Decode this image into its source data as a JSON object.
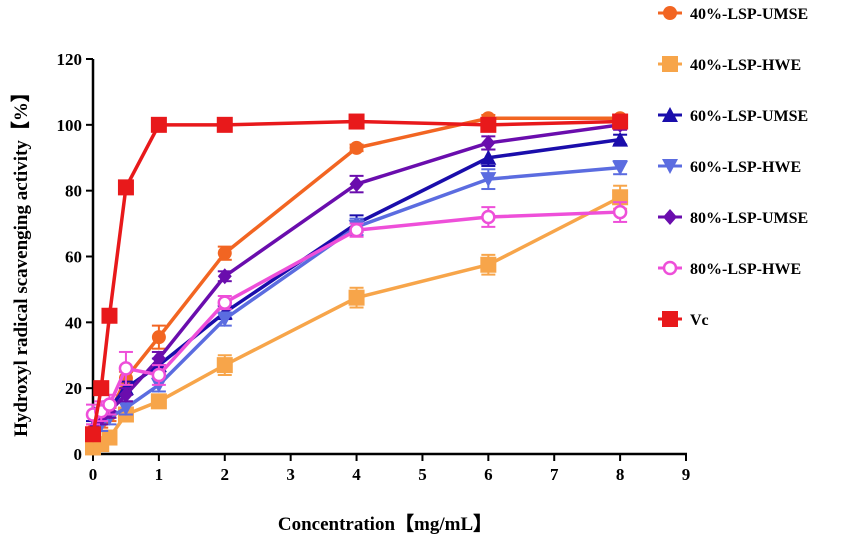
{
  "chart_data": {
    "type": "line",
    "xlabel": "Concentration【mg/mL】",
    "ylabel": "Hydroxyl radical scavenging activity【%】",
    "xlim": [
      0,
      9
    ],
    "ylim": [
      0,
      120
    ],
    "xticks": [
      0,
      1,
      2,
      3,
      4,
      5,
      6,
      7,
      8,
      9
    ],
    "yticks": [
      0,
      20,
      40,
      60,
      80,
      100,
      120
    ],
    "legend_position": "right",
    "series": [
      {
        "name": "40%-LSP-UMSE",
        "color": "#f26522",
        "marker": "circle",
        "x": [
          0,
          0.125,
          0.25,
          0.5,
          1,
          2,
          4,
          6,
          8
        ],
        "y": [
          7,
          10,
          12,
          23,
          35.5,
          61,
          93,
          102,
          102
        ],
        "err": [
          2,
          2,
          2,
          2,
          3.5,
          2,
          1,
          1,
          1
        ]
      },
      {
        "name": "40%-LSP-HWE",
        "color": "#f7a54a",
        "marker": "square",
        "x": [
          0,
          0.125,
          0.25,
          0.5,
          1,
          2,
          4,
          6,
          8
        ],
        "y": [
          2,
          3,
          5,
          12,
          16,
          27,
          47.5,
          57.5,
          78
        ],
        "err": [
          1,
          1,
          1,
          1.5,
          1.5,
          3,
          3,
          3,
          3.5
        ]
      },
      {
        "name": "60%-LSP-UMSE",
        "color": "#1a0dab",
        "marker": "triangle-up",
        "x": [
          0,
          0.125,
          0.25,
          0.5,
          1,
          2,
          4,
          6,
          8
        ],
        "y": [
          8,
          12,
          14,
          20,
          27,
          43,
          70,
          90,
          95.5
        ],
        "err": [
          2,
          2,
          2,
          2,
          2,
          2,
          2.5,
          2.5,
          1.5
        ]
      },
      {
        "name": "60%-LSP-HWE",
        "color": "#5b6ce0",
        "marker": "triangle-down",
        "x": [
          0,
          0.125,
          0.25,
          0.5,
          1,
          2,
          4,
          6,
          8
        ],
        "y": [
          6,
          9,
          11,
          14,
          21,
          41,
          69,
          83.5,
          87
        ],
        "err": [
          2,
          2,
          2,
          2,
          2,
          2,
          2.5,
          3,
          2
        ]
      },
      {
        "name": "80%-LSP-UMSE",
        "color": "#6a0dad",
        "marker": "diamond",
        "x": [
          0,
          0.125,
          0.25,
          0.5,
          1,
          2,
          4,
          6,
          8
        ],
        "y": [
          6,
          11,
          13,
          18,
          29,
          54,
          82,
          94.5,
          100
        ],
        "err": [
          2,
          2,
          2,
          2,
          2,
          1.5,
          2.5,
          2,
          1.5
        ]
      },
      {
        "name": "80%-LSP-HWE",
        "color": "#ee4fd9",
        "marker": "circle-open",
        "x": [
          0,
          0.125,
          0.25,
          0.5,
          1,
          2,
          4,
          6,
          8
        ],
        "y": [
          12,
          13,
          15,
          26,
          24,
          46,
          68,
          72,
          73.5
        ],
        "err": [
          3,
          3,
          3,
          5,
          3,
          2,
          2,
          3,
          3
        ]
      },
      {
        "name": "Vc",
        "color": "#e8191b",
        "marker": "square",
        "x": [
          0,
          0.125,
          0.25,
          0.5,
          1,
          2,
          4,
          6,
          8
        ],
        "y": [
          6,
          20,
          42,
          81,
          100,
          100,
          101,
          100,
          101
        ],
        "err": [
          1,
          1,
          1,
          1,
          1,
          1,
          1,
          1,
          1
        ]
      }
    ]
  }
}
